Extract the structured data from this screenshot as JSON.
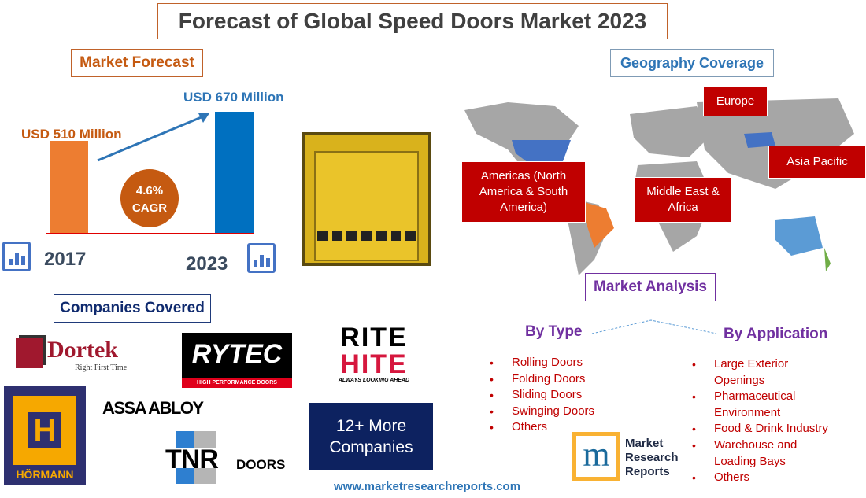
{
  "title": "Forecast of Global Speed Doors Market 2023",
  "market_forecast": {
    "heading": "Market Forecast",
    "start": {
      "year": "2017",
      "label": "USD 510 Million",
      "value": 510
    },
    "end": {
      "year": "2023",
      "label": "USD 670 Million",
      "value": 670
    },
    "cagr_value": "4.6%",
    "cagr_label": "CAGR",
    "colors": {
      "start": "#ed7d31",
      "end": "#0070c0",
      "cagr": "#c55a11"
    }
  },
  "geography": {
    "heading": "Geography Coverage",
    "regions": [
      "Europe",
      "Americas (North America & South America)",
      "Asia Pacific",
      "Middle East & Africa"
    ]
  },
  "companies": {
    "heading": "Companies Covered",
    "logos": [
      "Dortek",
      "Right First Time",
      "RYTEC",
      "HIGH PERFORMANCE DOORS",
      "RITE",
      "HITE",
      "ALWAYS LOOKING AHEAD",
      "HÖRMANN",
      "ASSA ABLOY",
      "TNR",
      "DOORS"
    ],
    "more": "12+ More Companies"
  },
  "analysis": {
    "heading": "Market Analysis",
    "by_type": {
      "label": "By Type",
      "items": [
        "Rolling Doors",
        "Folding Doors",
        "Sliding Doors",
        "Swinging Doors",
        "Others"
      ]
    },
    "by_application": {
      "label": "By Application",
      "items": [
        "Large Exterior Openings",
        "Pharmaceutical Environment",
        "Food & Drink Industry",
        "Warehouse and Loading Bays",
        "Others"
      ]
    }
  },
  "publisher": {
    "logo_text": "Market Research Reports",
    "url": "www.marketresearchreports.com"
  }
}
